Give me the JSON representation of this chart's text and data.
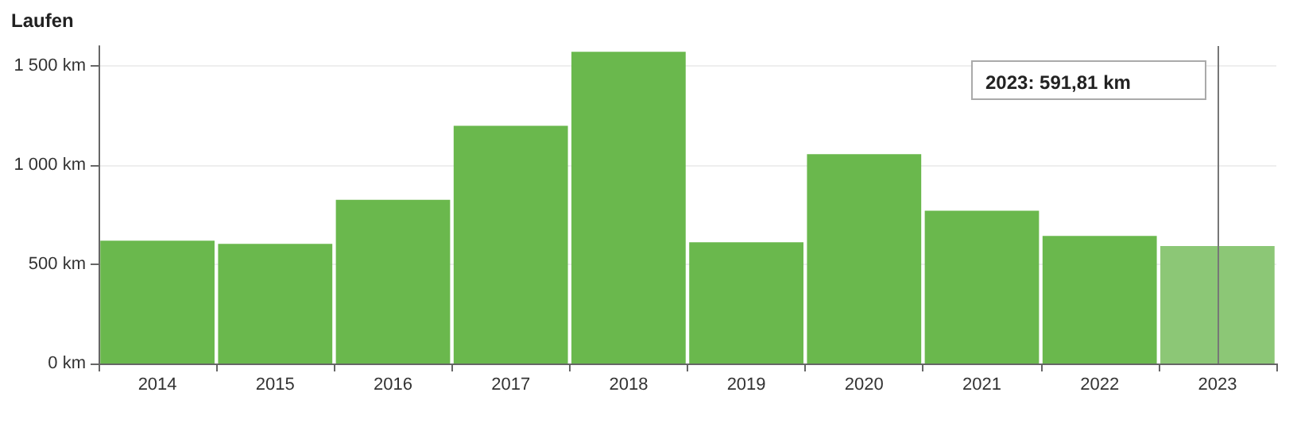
{
  "chart_data": {
    "type": "bar",
    "title": "Laufen",
    "categories": [
      "2014",
      "2015",
      "2016",
      "2017",
      "2018",
      "2019",
      "2020",
      "2021",
      "2022",
      "2023"
    ],
    "values": [
      619,
      603,
      825,
      1198,
      1571,
      611,
      1055,
      770,
      643,
      592
    ],
    "colors": [
      "#6ab84d",
      "#6ab84d",
      "#6ab84d",
      "#6ab84d",
      "#6ab84d",
      "#6ab84d",
      "#6ab84d",
      "#6ab84d",
      "#6ab84d",
      "#8cc776"
    ],
    "ylim": [
      0,
      1600
    ],
    "yticks": [
      {
        "value": 0,
        "label": "0 km"
      },
      {
        "value": 500,
        "label": "500 km"
      },
      {
        "value": 1000,
        "label": "1 000 km"
      },
      {
        "value": 1500,
        "label": "1 500 km"
      }
    ],
    "grid": "y",
    "annotations": [
      "2023: 591,81 km"
    ],
    "ref_lines": [
      {
        "axis": "x",
        "value": "2023",
        "color": "#777777"
      }
    ]
  }
}
